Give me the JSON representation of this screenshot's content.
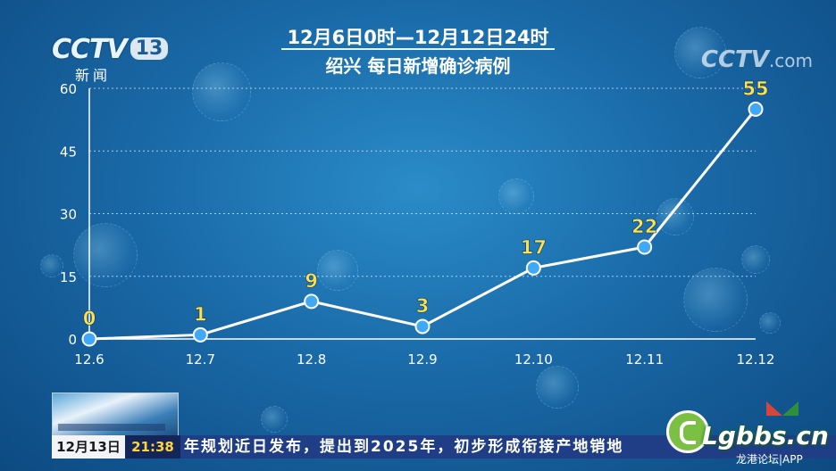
{
  "header": {
    "title_line1": "12月6日0时—12月12日24时",
    "title_line2": "绍兴 每日新增确诊病例"
  },
  "logos": {
    "cctv_mark": "CCTV",
    "cctv_channel": "13",
    "cctv_news": "新闻",
    "cctv_com": "CCTV",
    "cctv_com_suffix": ".com"
  },
  "chart_data": {
    "type": "line",
    "title": "",
    "xlabel": "",
    "ylabel": "",
    "categories": [
      "12.6",
      "12.7",
      "12.8",
      "12.9",
      "12.10",
      "12.11",
      "12.12"
    ],
    "values": [
      0,
      1,
      9,
      3,
      17,
      22,
      55
    ],
    "data_labels": [
      "0",
      "1",
      "9",
      "3",
      "17",
      "22",
      "55"
    ],
    "ylim": [
      0,
      60
    ],
    "yticks": [
      0,
      15,
      30,
      45,
      60
    ],
    "grid": true,
    "colors": {
      "line": "#ffffff",
      "marker_fill": "#3fa9f5",
      "marker_stroke": "#ffffff",
      "label": "#ffe14d",
      "grid": "#cfe6f5"
    }
  },
  "ticker": {
    "date": "12月13日",
    "time": "21:38",
    "text": "年规划近日发布，提出到2025年，初步形成衔接产地销地"
  },
  "watermark": {
    "site": "Lgbbs.cn",
    "sub": "龙港论坛|APP"
  }
}
